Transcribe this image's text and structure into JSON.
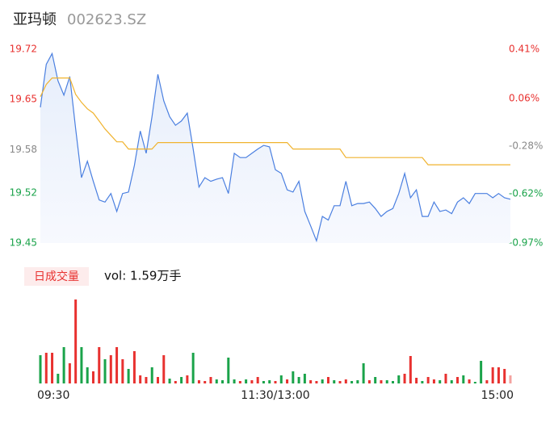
{
  "header": {
    "title": "亚玛顿",
    "code": "002623.SZ"
  },
  "chart_data": [
    {
      "type": "line",
      "x": [
        0,
        3,
        6,
        9,
        12,
        15,
        18,
        21,
        24,
        27,
        30,
        33,
        36,
        39,
        42,
        45,
        48,
        51,
        54,
        57,
        60,
        63,
        66,
        69,
        72,
        75,
        78,
        81,
        84,
        87,
        90,
        93,
        96,
        99,
        102,
        105,
        108,
        111,
        114,
        117,
        120,
        123,
        126,
        129,
        132,
        135,
        138,
        141,
        144,
        147,
        150,
        153,
        156,
        159,
        162,
        165,
        168,
        171,
        174,
        177,
        180,
        183,
        186,
        189,
        192,
        195,
        198,
        201,
        204,
        207,
        210,
        213,
        216,
        219,
        222,
        225,
        228,
        231,
        234,
        237,
        240
      ],
      "series": [
        {
          "name": "price",
          "color": "#4a7fe0",
          "values": [
            19.639,
            19.699,
            19.714,
            19.676,
            19.656,
            19.682,
            19.609,
            19.541,
            19.564,
            19.536,
            19.51,
            19.507,
            19.519,
            19.494,
            19.519,
            19.521,
            19.558,
            19.606,
            19.575,
            19.626,
            19.685,
            19.648,
            19.626,
            19.614,
            19.62,
            19.631,
            19.581,
            19.528,
            19.541,
            19.536,
            19.539,
            19.541,
            19.519,
            19.575,
            19.569,
            19.569,
            19.575,
            19.581,
            19.586,
            19.584,
            19.552,
            19.547,
            19.524,
            19.521,
            19.536,
            19.494,
            19.474,
            19.453,
            19.487,
            19.482,
            19.502,
            19.502,
            19.536,
            19.502,
            19.505,
            19.505,
            19.507,
            19.498,
            19.487,
            19.494,
            19.498,
            19.519,
            19.547,
            19.513,
            19.524,
            19.487,
            19.487,
            19.507,
            19.494,
            19.496,
            19.491,
            19.507,
            19.513,
            19.505,
            19.519,
            19.519,
            19.519,
            19.513,
            19.519,
            19.513,
            19.511
          ]
        },
        {
          "name": "average",
          "color": "#f0b32e",
          "values": [
            19.654,
            19.671,
            19.68,
            19.68,
            19.68,
            19.68,
            19.657,
            19.646,
            19.637,
            19.631,
            19.62,
            19.609,
            19.6,
            19.591,
            19.591,
            19.581,
            19.581,
            19.581,
            19.581,
            19.581,
            19.59,
            19.59,
            19.59,
            19.59,
            19.59,
            19.59,
            19.59,
            19.59,
            19.59,
            19.59,
            19.59,
            19.59,
            19.59,
            19.59,
            19.59,
            19.59,
            19.59,
            19.59,
            19.59,
            19.59,
            19.59,
            19.59,
            19.59,
            19.581,
            19.581,
            19.581,
            19.581,
            19.581,
            19.581,
            19.581,
            19.581,
            19.581,
            19.569,
            19.569,
            19.569,
            19.569,
            19.569,
            19.569,
            19.569,
            19.569,
            19.569,
            19.569,
            19.569,
            19.569,
            19.569,
            19.569,
            19.559,
            19.559,
            19.559,
            19.559,
            19.559,
            19.559,
            19.559,
            19.559,
            19.559,
            19.559,
            19.559,
            19.559,
            19.559,
            19.559,
            19.559
          ]
        }
      ],
      "xlim": [
        0,
        240
      ],
      "ylim": [
        19.45,
        19.72
      ],
      "yticks": [
        19.72,
        19.65,
        19.58,
        19.52,
        19.45
      ],
      "y2lim": [
        -0.97,
        0.41
      ],
      "y2ticks": [
        {
          "value": 0.41,
          "label": "0.41%"
        },
        {
          "value": 0.06,
          "label": "0.06%"
        },
        {
          "value": -0.28,
          "label": "-0.28%"
        },
        {
          "value": -0.62,
          "label": "-0.62%"
        },
        {
          "value": -0.97,
          "label": "-0.97%"
        }
      ],
      "tick_colors": [
        "#e8312f",
        "#e8312f",
        "#888888",
        "#1aa34a",
        "#1aa34a"
      ],
      "grid": false
    },
    {
      "type": "bar",
      "title": "日成交量",
      "subtitle": "vol: 1.59万手",
      "x": [
        0,
        3,
        6,
        9,
        12,
        15,
        18,
        21,
        24,
        27,
        30,
        33,
        36,
        39,
        42,
        45,
        48,
        51,
        54,
        57,
        60,
        63,
        66,
        69,
        72,
        75,
        78,
        81,
        84,
        87,
        90,
        93,
        96,
        99,
        102,
        105,
        108,
        111,
        114,
        117,
        120,
        123,
        126,
        129,
        132,
        135,
        138,
        141,
        144,
        147,
        150,
        153,
        156,
        159,
        162,
        165,
        168,
        171,
        174,
        177,
        180,
        183,
        186,
        189,
        192,
        195,
        198,
        201,
        204,
        207,
        210,
        213,
        216,
        219,
        222,
        225,
        228,
        231,
        234,
        237,
        240
      ],
      "values": [
        35,
        38,
        38,
        12,
        45,
        25,
        104,
        45,
        20,
        15,
        45,
        30,
        35,
        45,
        30,
        18,
        40,
        10,
        8,
        20,
        8,
        35,
        6,
        3,
        8,
        10,
        38,
        4,
        3,
        8,
        5,
        4,
        32,
        5,
        3,
        5,
        4,
        8,
        3,
        4,
        3,
        10,
        5,
        15,
        8,
        12,
        4,
        3,
        5,
        8,
        4,
        3,
        5,
        3,
        4,
        25,
        4,
        8,
        4,
        4,
        3,
        10,
        12,
        34,
        7,
        3,
        8,
        5,
        4,
        12,
        4,
        8,
        10,
        5,
        2,
        28,
        4,
        20,
        20,
        18,
        10
      ],
      "bar_colors": [
        "#1aa34a",
        "#e8312f",
        "#e8312f",
        "#1aa34a",
        "#1aa34a",
        "#e8312f",
        "#e8312f",
        "#1aa34a",
        "#1aa34a",
        "#e8312f",
        "#e8312f",
        "#1aa34a",
        "#e8312f",
        "#e8312f",
        "#e8312f",
        "#1aa34a",
        "#e8312f",
        "#e8312f",
        "#e8312f",
        "#1aa34a",
        "#e8312f",
        "#e8312f",
        "#1aa34a",
        "#e8312f",
        "#1aa34a",
        "#e8312f",
        "#1aa34a",
        "#e8312f",
        "#e8312f",
        "#e8312f",
        "#1aa34a",
        "#1aa34a",
        "#1aa34a",
        "#1aa34a",
        "#e8312f",
        "#1aa34a",
        "#e8312f",
        "#e8312f",
        "#1aa34a",
        "#1aa34a",
        "#e8312f",
        "#1aa34a",
        "#e8312f",
        "#1aa34a",
        "#1aa34a",
        "#1aa34a",
        "#e8312f",
        "#e8312f",
        "#1aa34a",
        "#e8312f",
        "#1aa34a",
        "#e8312f",
        "#e8312f",
        "#1aa34a",
        "#1aa34a",
        "#1aa34a",
        "#e8312f",
        "#1aa34a",
        "#e8312f",
        "#1aa34a",
        "#1aa34a",
        "#1aa34a",
        "#e8312f",
        "#e8312f",
        "#e8312f",
        "#1aa34a",
        "#e8312f",
        "#e8312f",
        "#1aa34a",
        "#e8312f",
        "#1aa34a",
        "#e8312f",
        "#1aa34a",
        "#e8312f",
        "#1aa34a",
        "#1aa34a",
        "#e8312f",
        "#e8312f",
        "#e8312f",
        "#e8312f",
        "#f4a3a0"
      ],
      "xlim": [
        0,
        240
      ],
      "ylim": [
        0,
        104
      ],
      "xticks": [
        {
          "value": 0,
          "label": "09:30"
        },
        {
          "value": 120,
          "label": "11:30/13:00"
        },
        {
          "value": 240,
          "label": "15:00"
        }
      ]
    }
  ]
}
